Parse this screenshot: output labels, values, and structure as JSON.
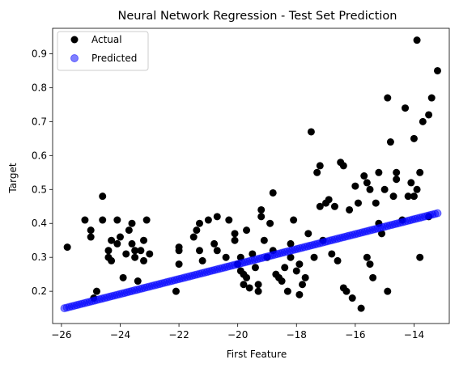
{
  "chart_data": {
    "type": "scatter",
    "title": "Neural Network Regression - Test Set Prediction",
    "xlabel": "First Feature",
    "ylabel": "Target",
    "xlim": [
      -26.3,
      -12.8
    ],
    "ylim": [
      0.105,
      0.975
    ],
    "xticks": [
      {
        "value": -26,
        "label": "−26"
      },
      {
        "value": -24,
        "label": "−24"
      },
      {
        "value": -22,
        "label": "−22"
      },
      {
        "value": -20,
        "label": "−20"
      },
      {
        "value": -18,
        "label": "−18"
      },
      {
        "value": -16,
        "label": "−16"
      },
      {
        "value": -14,
        "label": "−14"
      }
    ],
    "yticks": [
      {
        "value": 0.2,
        "label": "0.2"
      },
      {
        "value": 0.3,
        "label": "0.3"
      },
      {
        "value": 0.4,
        "label": "0.4"
      },
      {
        "value": 0.5,
        "label": "0.5"
      },
      {
        "value": 0.6,
        "label": "0.6"
      },
      {
        "value": 0.7,
        "label": "0.7"
      },
      {
        "value": 0.8,
        "label": "0.8"
      },
      {
        "value": 0.9,
        "label": "0.9"
      }
    ],
    "grid": false,
    "legend_position": "top-left",
    "series": [
      {
        "name": "Actual",
        "color": "#000000",
        "alpha": 1.0,
        "points": [
          [
            -25.8,
            0.33
          ],
          [
            -25.2,
            0.41
          ],
          [
            -25.0,
            0.38
          ],
          [
            -25.0,
            0.36
          ],
          [
            -24.8,
            0.2
          ],
          [
            -24.9,
            0.18
          ],
          [
            -24.6,
            0.48
          ],
          [
            -24.6,
            0.41
          ],
          [
            -24.4,
            0.32
          ],
          [
            -24.4,
            0.3
          ],
          [
            -24.3,
            0.29
          ],
          [
            -24.3,
            0.35
          ],
          [
            -24.1,
            0.34
          ],
          [
            -24.1,
            0.41
          ],
          [
            -24.0,
            0.36
          ],
          [
            -23.8,
            0.31
          ],
          [
            -23.9,
            0.24
          ],
          [
            -23.7,
            0.38
          ],
          [
            -23.6,
            0.4
          ],
          [
            -23.6,
            0.34
          ],
          [
            -23.5,
            0.32
          ],
          [
            -23.5,
            0.3
          ],
          [
            -23.4,
            0.23
          ],
          [
            -23.3,
            0.32
          ],
          [
            -23.2,
            0.35
          ],
          [
            -23.1,
            0.41
          ],
          [
            -23.2,
            0.29
          ],
          [
            -23.0,
            0.31
          ],
          [
            -22.1,
            0.2
          ],
          [
            -22.0,
            0.28
          ],
          [
            -22.0,
            0.32
          ],
          [
            -22.0,
            0.33
          ],
          [
            -21.5,
            0.36
          ],
          [
            -21.4,
            0.38
          ],
          [
            -21.3,
            0.32
          ],
          [
            -21.3,
            0.4
          ],
          [
            -21.2,
            0.29
          ],
          [
            -21.0,
            0.41
          ],
          [
            -20.8,
            0.34
          ],
          [
            -20.7,
            0.32
          ],
          [
            -20.7,
            0.42
          ],
          [
            -20.4,
            0.3
          ],
          [
            -20.3,
            0.41
          ],
          [
            -20.1,
            0.37
          ],
          [
            -20.1,
            0.35
          ],
          [
            -20.0,
            0.28
          ],
          [
            -19.9,
            0.26
          ],
          [
            -19.9,
            0.3
          ],
          [
            -19.8,
            0.25
          ],
          [
            -19.8,
            0.22
          ],
          [
            -19.7,
            0.38
          ],
          [
            -19.7,
            0.24
          ],
          [
            -19.6,
            0.21
          ],
          [
            -19.5,
            0.31
          ],
          [
            -19.4,
            0.27
          ],
          [
            -19.3,
            0.2
          ],
          [
            -19.3,
            0.22
          ],
          [
            -19.2,
            0.44
          ],
          [
            -19.2,
            0.42
          ],
          [
            -19.1,
            0.35
          ],
          [
            -19.0,
            0.3
          ],
          [
            -18.9,
            0.4
          ],
          [
            -18.8,
            0.49
          ],
          [
            -18.8,
            0.32
          ],
          [
            -18.7,
            0.25
          ],
          [
            -18.6,
            0.24
          ],
          [
            -18.5,
            0.23
          ],
          [
            -18.4,
            0.27
          ],
          [
            -18.3,
            0.2
          ],
          [
            -18.2,
            0.3
          ],
          [
            -18.2,
            0.34
          ],
          [
            -18.1,
            0.41
          ],
          [
            -18.0,
            0.26
          ],
          [
            -17.9,
            0.19
          ],
          [
            -17.9,
            0.28
          ],
          [
            -17.8,
            0.22
          ],
          [
            -17.7,
            0.24
          ],
          [
            -17.6,
            0.37
          ],
          [
            -17.5,
            0.67
          ],
          [
            -17.4,
            0.3
          ],
          [
            -17.3,
            0.55
          ],
          [
            -17.2,
            0.57
          ],
          [
            -17.2,
            0.45
          ],
          [
            -17.1,
            0.35
          ],
          [
            -17.0,
            0.46
          ],
          [
            -16.9,
            0.47
          ],
          [
            -16.8,
            0.31
          ],
          [
            -16.7,
            0.45
          ],
          [
            -16.6,
            0.29
          ],
          [
            -16.5,
            0.58
          ],
          [
            -16.4,
            0.21
          ],
          [
            -16.4,
            0.57
          ],
          [
            -16.3,
            0.2
          ],
          [
            -16.2,
            0.44
          ],
          [
            -16.1,
            0.18
          ],
          [
            -16.0,
            0.51
          ],
          [
            -15.9,
            0.46
          ],
          [
            -15.8,
            0.15
          ],
          [
            -15.7,
            0.54
          ],
          [
            -15.6,
            0.52
          ],
          [
            -15.6,
            0.3
          ],
          [
            -15.5,
            0.5
          ],
          [
            -15.5,
            0.28
          ],
          [
            -15.4,
            0.24
          ],
          [
            -15.3,
            0.46
          ],
          [
            -15.2,
            0.55
          ],
          [
            -15.2,
            0.4
          ],
          [
            -15.1,
            0.37
          ],
          [
            -15.0,
            0.5
          ],
          [
            -14.9,
            0.2
          ],
          [
            -14.9,
            0.77
          ],
          [
            -14.8,
            0.64
          ],
          [
            -14.7,
            0.48
          ],
          [
            -14.6,
            0.55
          ],
          [
            -14.6,
            0.53
          ],
          [
            -14.4,
            0.41
          ],
          [
            -14.3,
            0.74
          ],
          [
            -14.2,
            0.48
          ],
          [
            -14.1,
            0.52
          ],
          [
            -14.0,
            0.65
          ],
          [
            -14.0,
            0.48
          ],
          [
            -13.9,
            0.94
          ],
          [
            -13.9,
            0.5
          ],
          [
            -13.8,
            0.55
          ],
          [
            -13.8,
            0.3
          ],
          [
            -13.7,
            0.7
          ],
          [
            -13.5,
            0.72
          ],
          [
            -13.5,
            0.42
          ],
          [
            -13.4,
            0.77
          ],
          [
            -13.2,
            0.85
          ]
        ]
      },
      {
        "name": "Predicted",
        "color": "#0000ff",
        "alpha": 0.5,
        "line_fit": {
          "x_start": -25.9,
          "x_end": -13.2,
          "y_start": 0.15,
          "y_end": 0.43,
          "count": 150
        }
      }
    ]
  }
}
